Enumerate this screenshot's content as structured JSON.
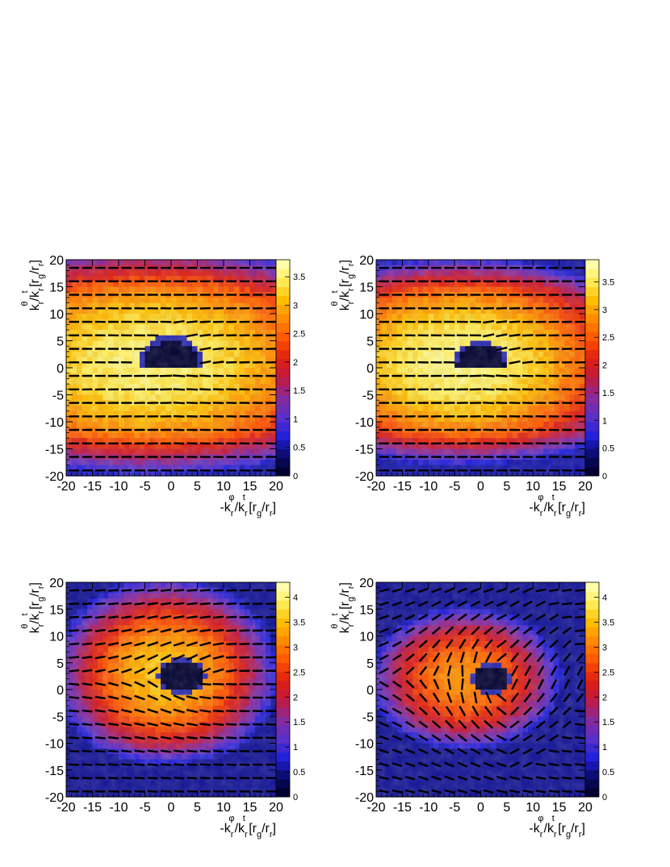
{
  "chart_data": [
    {
      "type": "heatmap",
      "panel": "top-left",
      "xlabel": "-k_r^φ/k_r^t [r_g/r_r]",
      "ylabel": "k_r^θ/k_r^t [r_g/r_r]",
      "xlim": [
        -20,
        20
      ],
      "ylim": [
        -20,
        20
      ],
      "x_ticks": [
        "-20",
        "-15",
        "-10",
        "-5",
        "0",
        "5",
        "10",
        "15",
        "20"
      ],
      "y_ticks": [
        "-20",
        "-15",
        "-10",
        "-5",
        "0",
        "5",
        "10",
        "15",
        "20"
      ],
      "z_range": [
        0,
        3.8
      ],
      "colorbar_ticks": [
        "0",
        "0.5",
        "1",
        "1.5",
        "2",
        "2.5",
        "3",
        "3.5"
      ],
      "shadow": {
        "shape": "ring-arc",
        "center": [
          0,
          0
        ],
        "radius": 6.5
      },
      "bright_center": [
        -4,
        1
      ],
      "field_lines": "horizontal dashes, slight tilt near shadow"
    },
    {
      "type": "heatmap",
      "panel": "top-right",
      "xlabel": "-k_r^φ/k_r^t [r_g/r_r]",
      "ylabel": "k_r^θ/k_r^t [r_g/r_r]",
      "xlim": [
        -20,
        20
      ],
      "ylim": [
        -20,
        20
      ],
      "x_ticks": [
        "-20",
        "-15",
        "-10",
        "-5",
        "0",
        "5",
        "10",
        "15",
        "20"
      ],
      "y_ticks": [
        "-20",
        "-15",
        "-10",
        "-5",
        "0",
        "5",
        "10",
        "15",
        "20"
      ],
      "z_range": [
        0,
        3.9
      ],
      "colorbar_ticks": [
        "0",
        "0.5",
        "1",
        "1.5",
        "2",
        "2.5",
        "3",
        "3.5"
      ],
      "shadow": {
        "shape": "dome",
        "center": [
          0,
          0
        ],
        "radius": 5.5
      },
      "bright_center": [
        -4,
        1
      ],
      "field_lines": "horizontal dashes, slight tilt near shadow"
    },
    {
      "type": "heatmap",
      "panel": "bottom-left",
      "xlabel": "-k_r^φ/k_r^t [r_g/r_r]",
      "ylabel": "k_r^θ/k_r^t [r_g/r_r]",
      "xlim": [
        -20,
        20
      ],
      "ylim": [
        -20,
        20
      ],
      "x_ticks": [
        "-20",
        "-15",
        "-10",
        "-5",
        "0",
        "5",
        "10",
        "15",
        "20"
      ],
      "y_ticks": [
        "-20",
        "-15",
        "-10",
        "-5",
        "0",
        "5",
        "10",
        "15",
        "20"
      ],
      "z_range": [
        0,
        4.3
      ],
      "colorbar_ticks": [
        "0",
        "0.5",
        "1",
        "1.5",
        "2",
        "2.5",
        "3",
        "3.5",
        "4"
      ],
      "shadow": {
        "shape": "blob",
        "center": [
          2,
          2.5
        ],
        "radius": 4.5
      },
      "bright_center": [
        -1,
        3
      ],
      "field_lines": "tilted dashes near shadow"
    },
    {
      "type": "heatmap",
      "panel": "bottom-right",
      "xlabel": "-k_r^φ/k_r^t [r_g/r_r]",
      "ylabel": "k_r^θ/k_r^t [r_g/r_r]",
      "xlim": [
        -20,
        20
      ],
      "ylim": [
        -20,
        20
      ],
      "x_ticks": [
        "-20",
        "-15",
        "-10",
        "-5",
        "0",
        "5",
        "10",
        "15",
        "20"
      ],
      "y_ticks": [
        "-20",
        "-15",
        "-10",
        "-5",
        "0",
        "5",
        "10",
        "15",
        "20"
      ],
      "z_range": [
        0,
        4.3
      ],
      "colorbar_ticks": [
        "0",
        "0.5",
        "1",
        "1.5",
        "2",
        "2.5",
        "3",
        "3.5",
        "4"
      ],
      "shadow": {
        "shape": "blob",
        "center": [
          2,
          2
        ],
        "radius": 3.8
      },
      "bright_center": [
        -3,
        2
      ],
      "field_lines": "strongly tilted dashes, swirling pattern"
    }
  ],
  "colors": {
    "palette": [
      "#000022",
      "#0a0a66",
      "#2020dd",
      "#5a30c8",
      "#8a2a9a",
      "#c01a40",
      "#e02010",
      "#ff5500",
      "#ff8a00",
      "#ffc000",
      "#fff060",
      "#ffffc0"
    ],
    "shadow": "#000030",
    "ring": "#2a2ab0",
    "vectors": "#000000"
  }
}
